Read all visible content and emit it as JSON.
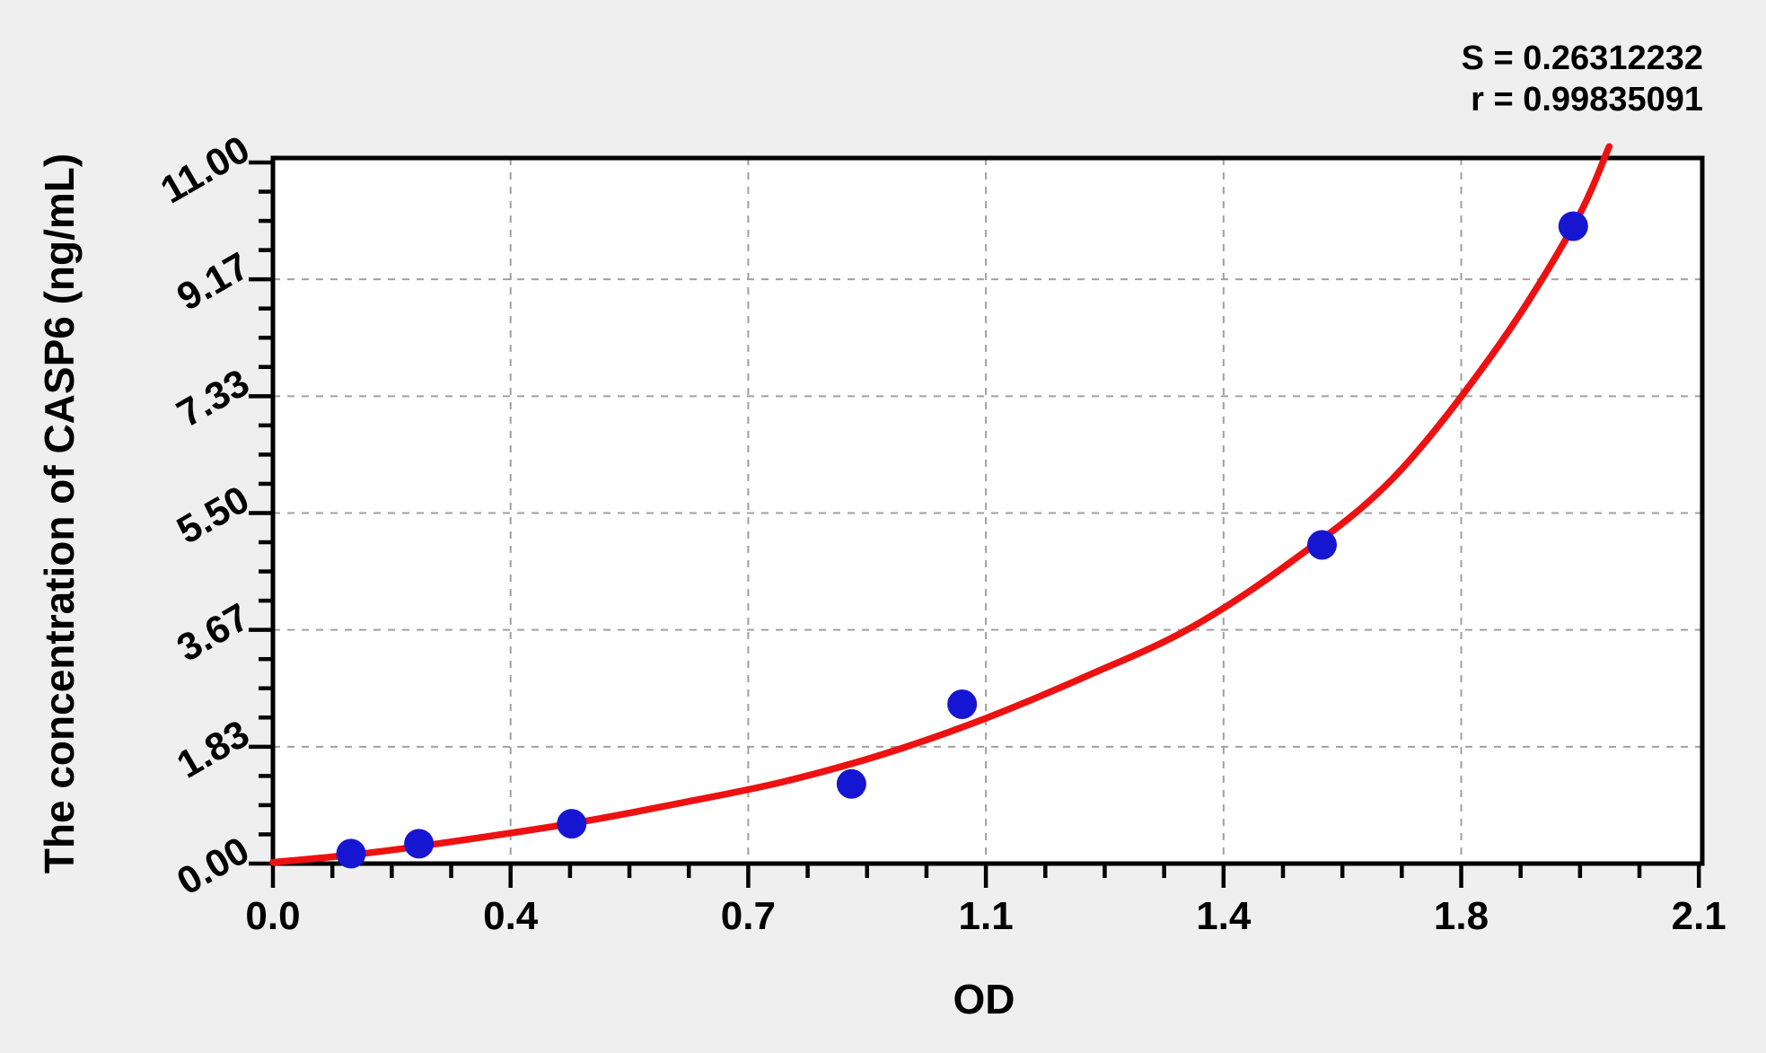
{
  "stats": {
    "line1": "S = 0.26312232",
    "line2": "r = 0.99835091"
  },
  "chart_data": {
    "type": "scatter",
    "title": "",
    "xlabel": "OD",
    "ylabel": "The concentration of CASP6 (ng/mL)",
    "x_range": [
      0,
      2.105
    ],
    "y_range": [
      0,
      11.07
    ],
    "grid": "dashed",
    "legend": "none",
    "minor_ticks_per_interval": 3,
    "x_ticks": [
      {
        "value": 0.0,
        "label": "0.0",
        "grid": false
      },
      {
        "value": 0.35,
        "label": "0.4",
        "grid": true
      },
      {
        "value": 0.7,
        "label": "0.7",
        "grid": true
      },
      {
        "value": 1.05,
        "label": "1.1",
        "grid": true
      },
      {
        "value": 1.4,
        "label": "1.4",
        "grid": true
      },
      {
        "value": 1.75,
        "label": "1.8",
        "grid": true
      },
      {
        "value": 2.1,
        "label": "2.1",
        "grid": false
      }
    ],
    "y_ticks": [
      {
        "value": 0.0,
        "label": "0.00",
        "grid": false
      },
      {
        "value": 1.8333,
        "label": "1.83",
        "grid": true
      },
      {
        "value": 3.6667,
        "label": "3.67",
        "grid": true
      },
      {
        "value": 5.5,
        "label": "5.50",
        "grid": true
      },
      {
        "value": 7.3333,
        "label": "7.33",
        "grid": true
      },
      {
        "value": 9.1667,
        "label": "9.17",
        "grid": true
      },
      {
        "value": 11.0,
        "label": "11.00",
        "grid": false
      }
    ],
    "series": [
      {
        "name": "standards",
        "type": "scatter",
        "points": [
          [
            0.115,
            0.156
          ],
          [
            0.215,
            0.312
          ],
          [
            0.44,
            0.625
          ],
          [
            0.852,
            1.25
          ],
          [
            1.015,
            2.5
          ],
          [
            1.545,
            5.0
          ],
          [
            1.915,
            10.0
          ]
        ]
      },
      {
        "name": "fitted-curve",
        "type": "line",
        "points": [
          [
            0.0,
            0.02
          ],
          [
            0.11,
            0.13
          ],
          [
            0.215,
            0.27
          ],
          [
            0.44,
            0.63
          ],
          [
            0.6,
            0.95
          ],
          [
            0.75,
            1.28
          ],
          [
            0.9,
            1.72
          ],
          [
            1.05,
            2.28
          ],
          [
            1.2,
            2.95
          ],
          [
            1.35,
            3.69
          ],
          [
            1.5,
            4.74
          ],
          [
            1.65,
            6.05
          ],
          [
            1.8,
            8.05
          ],
          [
            1.915,
            10.0
          ],
          [
            1.968,
            11.25
          ]
        ]
      }
    ],
    "fit_statistics": {
      "S": "0.26312232",
      "r": "0.99835091"
    },
    "colors": {
      "point": "#1616d2",
      "curve": "#ee1111",
      "grid": "#a0a0a0",
      "axis": "#000000",
      "text": "#000000",
      "background": "#efefef",
      "plot_background": "#ffffff"
    }
  }
}
